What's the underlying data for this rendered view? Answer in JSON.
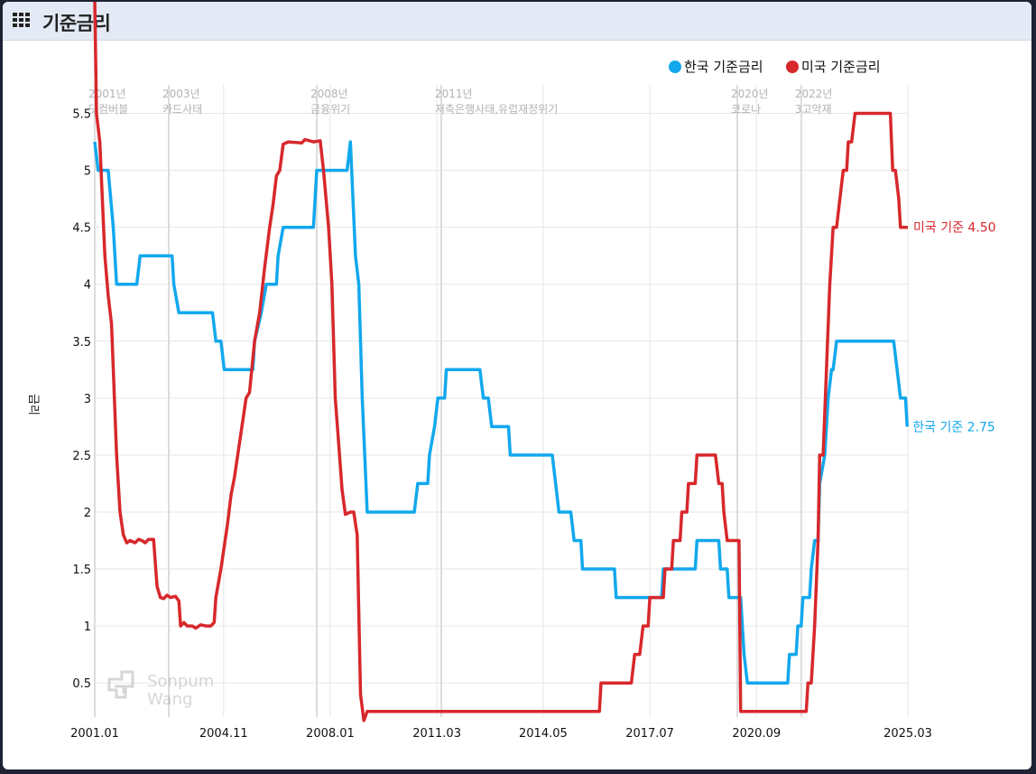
{
  "header": {
    "title": "기준금리",
    "icon": "grid-icon"
  },
  "colors": {
    "korea": "#12a8ee",
    "us": "#d7282c"
  },
  "chart_data": {
    "type": "line",
    "title": "기준금리",
    "ylabel": "금리",
    "xlabel": "",
    "x_range": [
      "2001.01",
      "2025.03"
    ],
    "ylim": [
      0.2,
      5.75
    ],
    "y_ticks": [
      "0.5",
      "1",
      "1.5",
      "2",
      "2.5",
      "3",
      "3.5",
      "4",
      "4.5",
      "5",
      "5.5"
    ],
    "x_ticks": [
      {
        "label": "2001.01",
        "x": 2001.0
      },
      {
        "label": "2004.11",
        "x": 2004.83
      },
      {
        "label": "2008.01",
        "x": 2008.0
      },
      {
        "label": "2011.03",
        "x": 2011.17
      },
      {
        "label": "2014.05",
        "x": 2014.33
      },
      {
        "label": "2017.07",
        "x": 2017.5
      },
      {
        "label": "2020.09",
        "x": 2020.67
      },
      {
        "label": "2025.03",
        "x": 2025.17
      }
    ],
    "events": [
      {
        "x": 2001.0,
        "year": "2001년",
        "label": "닷컴버블"
      },
      {
        "x": 2003.2,
        "year": "2003년",
        "label": "카드사태"
      },
      {
        "x": 2007.6,
        "year": "2008년",
        "label": "금융위기"
      },
      {
        "x": 2011.3,
        "year": "2011년",
        "label": "저축은행사태,유럽재정위기"
      },
      {
        "x": 2020.1,
        "year": "2020년",
        "label": "코로나"
      },
      {
        "x": 2022.0,
        "year": "2022년",
        "label": "3고악재"
      }
    ],
    "legend": {
      "position": "top-right"
    },
    "grid": true,
    "series": [
      {
        "name": "한국 기준금리",
        "end_label": "한국 기준 2.75",
        "color": "#12a8ee",
        "points": [
          [
            2001.0,
            5.25
          ],
          [
            2001.1,
            5.0
          ],
          [
            2001.4,
            5.0
          ],
          [
            2001.55,
            4.5
          ],
          [
            2001.65,
            4.0
          ],
          [
            2002.25,
            4.0
          ],
          [
            2002.35,
            4.25
          ],
          [
            2003.3,
            4.25
          ],
          [
            2003.35,
            4.0
          ],
          [
            2003.5,
            3.75
          ],
          [
            2004.5,
            3.75
          ],
          [
            2004.6,
            3.5
          ],
          [
            2004.75,
            3.5
          ],
          [
            2004.85,
            3.25
          ],
          [
            2005.7,
            3.25
          ],
          [
            2005.75,
            3.5
          ],
          [
            2005.95,
            3.75
          ],
          [
            2006.1,
            4.0
          ],
          [
            2006.4,
            4.0
          ],
          [
            2006.45,
            4.25
          ],
          [
            2006.6,
            4.5
          ],
          [
            2007.5,
            4.5
          ],
          [
            2007.6,
            5.0
          ],
          [
            2008.5,
            5.0
          ],
          [
            2008.6,
            5.25
          ],
          [
            2008.75,
            4.25
          ],
          [
            2008.85,
            4.0
          ],
          [
            2008.95,
            3.0
          ],
          [
            2009.1,
            2.0
          ],
          [
            2010.5,
            2.0
          ],
          [
            2010.6,
            2.25
          ],
          [
            2010.9,
            2.25
          ],
          [
            2010.95,
            2.5
          ],
          [
            2011.1,
            2.75
          ],
          [
            2011.2,
            3.0
          ],
          [
            2011.4,
            3.0
          ],
          [
            2011.45,
            3.25
          ],
          [
            2012.45,
            3.25
          ],
          [
            2012.55,
            3.0
          ],
          [
            2012.7,
            3.0
          ],
          [
            2012.8,
            2.75
          ],
          [
            2013.3,
            2.75
          ],
          [
            2013.35,
            2.5
          ],
          [
            2014.6,
            2.5
          ],
          [
            2014.7,
            2.25
          ],
          [
            2014.8,
            2.0
          ],
          [
            2015.15,
            2.0
          ],
          [
            2015.25,
            1.75
          ],
          [
            2015.45,
            1.75
          ],
          [
            2015.5,
            1.5
          ],
          [
            2016.45,
            1.5
          ],
          [
            2016.5,
            1.25
          ],
          [
            2017.85,
            1.25
          ],
          [
            2017.9,
            1.5
          ],
          [
            2018.85,
            1.5
          ],
          [
            2018.9,
            1.75
          ],
          [
            2019.55,
            1.75
          ],
          [
            2019.6,
            1.5
          ],
          [
            2019.8,
            1.5
          ],
          [
            2019.85,
            1.25
          ],
          [
            2020.2,
            1.25
          ],
          [
            2020.3,
            0.75
          ],
          [
            2020.4,
            0.5
          ],
          [
            2021.6,
            0.5
          ],
          [
            2021.65,
            0.75
          ],
          [
            2021.85,
            0.75
          ],
          [
            2021.9,
            1.0
          ],
          [
            2022.0,
            1.0
          ],
          [
            2022.05,
            1.25
          ],
          [
            2022.25,
            1.25
          ],
          [
            2022.3,
            1.5
          ],
          [
            2022.4,
            1.75
          ],
          [
            2022.5,
            1.75
          ],
          [
            2022.55,
            2.25
          ],
          [
            2022.7,
            2.5
          ],
          [
            2022.8,
            3.0
          ],
          [
            2022.9,
            3.25
          ],
          [
            2022.95,
            3.25
          ],
          [
            2023.05,
            3.5
          ],
          [
            2024.75,
            3.5
          ],
          [
            2024.85,
            3.25
          ],
          [
            2024.95,
            3.0
          ],
          [
            2025.1,
            3.0
          ],
          [
            2025.15,
            2.75
          ]
        ]
      },
      {
        "name": "미국 기준금리",
        "end_label": "미국 기준 4.50",
        "color": "#d7282c",
        "points": [
          [
            2001.0,
            6.5
          ],
          [
            2001.05,
            5.5
          ],
          [
            2001.15,
            5.25
          ],
          [
            2001.3,
            4.25
          ],
          [
            2001.4,
            3.9
          ],
          [
            2001.5,
            3.65
          ],
          [
            2001.65,
            2.5
          ],
          [
            2001.75,
            2.0
          ],
          [
            2001.85,
            1.8
          ],
          [
            2001.95,
            1.73
          ],
          [
            2002.05,
            1.75
          ],
          [
            2002.2,
            1.73
          ],
          [
            2002.3,
            1.76
          ],
          [
            2002.4,
            1.75
          ],
          [
            2002.5,
            1.73
          ],
          [
            2002.6,
            1.76
          ],
          [
            2002.75,
            1.76
          ],
          [
            2002.85,
            1.35
          ],
          [
            2002.95,
            1.25
          ],
          [
            2003.05,
            1.24
          ],
          [
            2003.15,
            1.27
          ],
          [
            2003.25,
            1.25
          ],
          [
            2003.4,
            1.26
          ],
          [
            2003.5,
            1.22
          ],
          [
            2003.55,
            1.0
          ],
          [
            2003.65,
            1.03
          ],
          [
            2003.75,
            1.0
          ],
          [
            2003.9,
            1.0
          ],
          [
            2004.0,
            0.98
          ],
          [
            2004.15,
            1.01
          ],
          [
            2004.3,
            1.0
          ],
          [
            2004.45,
            1.0
          ],
          [
            2004.55,
            1.03
          ],
          [
            2004.6,
            1.25
          ],
          [
            2004.75,
            1.5
          ],
          [
            2004.95,
            1.9
          ],
          [
            2005.05,
            2.15
          ],
          [
            2005.15,
            2.3
          ],
          [
            2005.25,
            2.5
          ],
          [
            2005.4,
            2.8
          ],
          [
            2005.5,
            3.0
          ],
          [
            2005.6,
            3.05
          ],
          [
            2005.75,
            3.5
          ],
          [
            2005.9,
            3.75
          ],
          [
            2006.05,
            4.15
          ],
          [
            2006.2,
            4.5
          ],
          [
            2006.3,
            4.7
          ],
          [
            2006.4,
            4.95
          ],
          [
            2006.5,
            5.0
          ],
          [
            2006.6,
            5.23
          ],
          [
            2006.75,
            5.25
          ],
          [
            2007.15,
            5.24
          ],
          [
            2007.25,
            5.27
          ],
          [
            2007.5,
            5.25
          ],
          [
            2007.7,
            5.26
          ],
          [
            2007.8,
            5.0
          ],
          [
            2007.95,
            4.5
          ],
          [
            2008.05,
            4.0
          ],
          [
            2008.15,
            3.0
          ],
          [
            2008.25,
            2.6
          ],
          [
            2008.35,
            2.2
          ],
          [
            2008.45,
            1.98
          ],
          [
            2008.6,
            2.0
          ],
          [
            2008.7,
            2.0
          ],
          [
            2008.8,
            1.8
          ],
          [
            2008.9,
            0.4
          ],
          [
            2009.0,
            0.17
          ],
          [
            2009.1,
            0.25
          ],
          [
            2016.0,
            0.25
          ],
          [
            2016.05,
            0.5
          ],
          [
            2016.95,
            0.5
          ],
          [
            2017.05,
            0.75
          ],
          [
            2017.2,
            0.75
          ],
          [
            2017.3,
            1.0
          ],
          [
            2017.45,
            1.0
          ],
          [
            2017.5,
            1.25
          ],
          [
            2017.9,
            1.25
          ],
          [
            2017.95,
            1.5
          ],
          [
            2018.15,
            1.5
          ],
          [
            2018.2,
            1.75
          ],
          [
            2018.4,
            1.75
          ],
          [
            2018.45,
            2.0
          ],
          [
            2018.6,
            2.0
          ],
          [
            2018.65,
            2.25
          ],
          [
            2018.85,
            2.25
          ],
          [
            2018.9,
            2.5
          ],
          [
            2019.45,
            2.5
          ],
          [
            2019.55,
            2.25
          ],
          [
            2019.65,
            2.25
          ],
          [
            2019.7,
            2.0
          ],
          [
            2019.8,
            1.75
          ],
          [
            2020.15,
            1.75
          ],
          [
            2020.2,
            0.25
          ],
          [
            2022.15,
            0.25
          ],
          [
            2022.2,
            0.5
          ],
          [
            2022.3,
            0.5
          ],
          [
            2022.4,
            1.0
          ],
          [
            2022.5,
            1.75
          ],
          [
            2022.55,
            2.5
          ],
          [
            2022.65,
            2.5
          ],
          [
            2022.75,
            3.25
          ],
          [
            2022.85,
            4.0
          ],
          [
            2022.95,
            4.5
          ],
          [
            2023.05,
            4.5
          ],
          [
            2023.15,
            4.75
          ],
          [
            2023.25,
            5.0
          ],
          [
            2023.35,
            5.0
          ],
          [
            2023.4,
            5.25
          ],
          [
            2023.5,
            5.25
          ],
          [
            2023.6,
            5.5
          ],
          [
            2024.65,
            5.5
          ],
          [
            2024.72,
            5.0
          ],
          [
            2024.8,
            5.0
          ],
          [
            2024.9,
            4.75
          ],
          [
            2024.95,
            4.5
          ],
          [
            2025.17,
            4.5
          ]
        ]
      }
    ]
  },
  "watermark": {
    "line1": "Sonpum",
    "line2": "Wang"
  }
}
